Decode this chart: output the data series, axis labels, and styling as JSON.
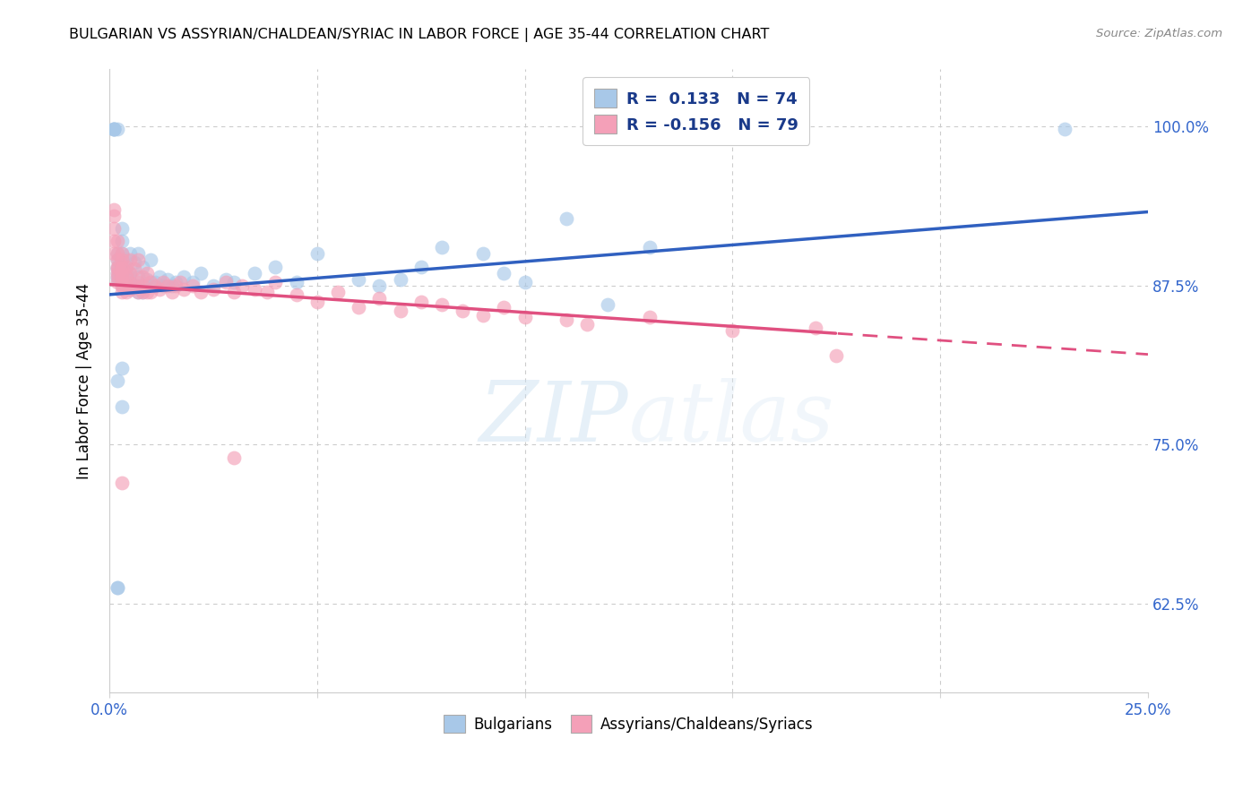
{
  "title": "BULGARIAN VS ASSYRIAN/CHALDEAN/SYRIAC IN LABOR FORCE | AGE 35-44 CORRELATION CHART",
  "source": "Source: ZipAtlas.com",
  "ylabel": "In Labor Force | Age 35-44",
  "xlim": [
    0.0,
    0.25
  ],
  "ylim": [
    0.555,
    1.045
  ],
  "xticks": [
    0.0,
    0.05,
    0.1,
    0.15,
    0.2,
    0.25
  ],
  "xtick_labels": [
    "0.0%",
    "",
    "",
    "",
    "",
    "25.0%"
  ],
  "yticks": [
    0.625,
    0.75,
    0.875,
    1.0
  ],
  "ytick_labels": [
    "62.5%",
    "75.0%",
    "87.5%",
    "100.0%"
  ],
  "blue_color": "#a8c8e8",
  "pink_color": "#f4a0b8",
  "blue_line_color": "#3060c0",
  "pink_line_color": "#e05080",
  "trend_blue_intercept": 0.868,
  "trend_blue_slope": 0.26,
  "trend_pink_intercept": 0.876,
  "trend_pink_slope": -0.22,
  "trend_pink_solid_end": 0.175,
  "watermark_text": "ZIPatlas",
  "scatter_size": 130,
  "blue_scatter_x": [
    0.001,
    0.001,
    0.001,
    0.001,
    0.002,
    0.002,
    0.002,
    0.002,
    0.002,
    0.002,
    0.002,
    0.002,
    0.003,
    0.003,
    0.003,
    0.003,
    0.003,
    0.003,
    0.003,
    0.003,
    0.003,
    0.003,
    0.004,
    0.004,
    0.004,
    0.004,
    0.005,
    0.005,
    0.005,
    0.005,
    0.006,
    0.006,
    0.007,
    0.007,
    0.007,
    0.007,
    0.008,
    0.008,
    0.009,
    0.01,
    0.01,
    0.011,
    0.012,
    0.013,
    0.014,
    0.015,
    0.016,
    0.018,
    0.02,
    0.022,
    0.025,
    0.028,
    0.03,
    0.035,
    0.04,
    0.045,
    0.05,
    0.06,
    0.065,
    0.07,
    0.075,
    0.08,
    0.09,
    0.095,
    0.1,
    0.11,
    0.12,
    0.13,
    0.002,
    0.002,
    0.002,
    0.003,
    0.003,
    0.23
  ],
  "blue_scatter_y": [
    0.998,
    0.998,
    0.998,
    0.998,
    0.88,
    0.882,
    0.885,
    0.888,
    0.89,
    0.895,
    0.9,
    0.998,
    0.875,
    0.878,
    0.88,
    0.885,
    0.888,
    0.89,
    0.895,
    0.9,
    0.91,
    0.92,
    0.875,
    0.878,
    0.885,
    0.895,
    0.872,
    0.878,
    0.885,
    0.9,
    0.875,
    0.893,
    0.87,
    0.875,
    0.882,
    0.9,
    0.87,
    0.89,
    0.88,
    0.875,
    0.895,
    0.878,
    0.882,
    0.875,
    0.88,
    0.875,
    0.878,
    0.882,
    0.878,
    0.885,
    0.875,
    0.88,
    0.878,
    0.885,
    0.89,
    0.878,
    0.9,
    0.88,
    0.875,
    0.88,
    0.89,
    0.905,
    0.9,
    0.885,
    0.878,
    0.928,
    0.86,
    0.905,
    0.638,
    0.638,
    0.8,
    0.81,
    0.78,
    0.998
  ],
  "pink_scatter_x": [
    0.001,
    0.001,
    0.001,
    0.001,
    0.001,
    0.002,
    0.002,
    0.002,
    0.002,
    0.002,
    0.002,
    0.002,
    0.002,
    0.003,
    0.003,
    0.003,
    0.003,
    0.003,
    0.003,
    0.003,
    0.003,
    0.003,
    0.004,
    0.004,
    0.004,
    0.004,
    0.005,
    0.005,
    0.005,
    0.005,
    0.006,
    0.006,
    0.007,
    0.007,
    0.007,
    0.008,
    0.008,
    0.008,
    0.009,
    0.009,
    0.01,
    0.01,
    0.011,
    0.012,
    0.013,
    0.014,
    0.015,
    0.016,
    0.017,
    0.018,
    0.02,
    0.022,
    0.025,
    0.028,
    0.03,
    0.032,
    0.035,
    0.038,
    0.04,
    0.045,
    0.05,
    0.055,
    0.06,
    0.065,
    0.07,
    0.075,
    0.08,
    0.085,
    0.09,
    0.095,
    0.1,
    0.11,
    0.115,
    0.13,
    0.15,
    0.17,
    0.003,
    0.03,
    0.175
  ],
  "pink_scatter_y": [
    0.935,
    0.93,
    0.92,
    0.91,
    0.9,
    0.878,
    0.882,
    0.885,
    0.888,
    0.89,
    0.895,
    0.9,
    0.91,
    0.87,
    0.875,
    0.878,
    0.882,
    0.885,
    0.888,
    0.89,
    0.895,
    0.9,
    0.87,
    0.875,
    0.882,
    0.89,
    0.872,
    0.878,
    0.885,
    0.895,
    0.875,
    0.888,
    0.87,
    0.878,
    0.895,
    0.87,
    0.875,
    0.882,
    0.87,
    0.885,
    0.87,
    0.878,
    0.875,
    0.872,
    0.878,
    0.875,
    0.87,
    0.875,
    0.878,
    0.872,
    0.875,
    0.87,
    0.872,
    0.878,
    0.87,
    0.875,
    0.872,
    0.87,
    0.878,
    0.868,
    0.862,
    0.87,
    0.858,
    0.865,
    0.855,
    0.862,
    0.86,
    0.855,
    0.852,
    0.858,
    0.85,
    0.848,
    0.845,
    0.85,
    0.84,
    0.842,
    0.72,
    0.74,
    0.82
  ]
}
